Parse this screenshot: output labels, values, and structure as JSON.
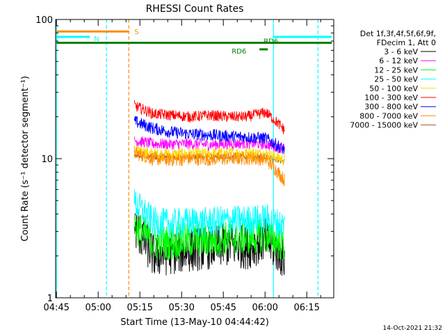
{
  "chart_data": {
    "type": "line",
    "title": "RHESSI Count Rates",
    "xlabel": "Start Time (13-May-10 04:44:42)",
    "ylabel": "Count Rate (s⁻¹ detector segment⁻¹)",
    "yscale": "log",
    "ylim": [
      1,
      100
    ],
    "xlim": [
      "04:44:42",
      "06:24:42"
    ],
    "x_ticks": [
      "04:45",
      "05:00",
      "05:15",
      "05:30",
      "05:45",
      "06:00",
      "06:15"
    ],
    "y_ticks": [
      "1",
      "10",
      "100"
    ],
    "legend_header": [
      "Det 1f,3f,4f,5f,6f,9f,",
      "FDecim 1, Att 0"
    ],
    "timestamp": "14-Oct-2021 21:32",
    "series": [
      {
        "name": "3 - 6 keV",
        "color": "#000000",
        "start": "05:13",
        "end": "06:07",
        "level": [
          3.2,
          2.0,
          2.1,
          2.2,
          2.3,
          2.4,
          2.3,
          2.6,
          1.9
        ]
      },
      {
        "name": "6 - 12 keV",
        "color": "#ff00ff",
        "start": "05:13",
        "end": "06:07",
        "level": [
          13.5,
          12.8,
          12.7,
          12.8,
          12.6,
          12.8,
          12.9,
          12.7,
          11.8
        ]
      },
      {
        "name": "12 - 25 keV",
        "color": "#00ff00",
        "start": "05:13",
        "end": "06:07",
        "level": [
          3.3,
          2.5,
          2.5,
          2.6,
          2.6,
          2.7,
          2.7,
          2.8,
          2.4
        ]
      },
      {
        "name": "25 - 50 keV",
        "color": "#00ffff",
        "start": "05:13",
        "end": "06:07",
        "level": [
          4.8,
          3.5,
          3.4,
          3.5,
          3.5,
          3.6,
          3.6,
          3.7,
          3.3
        ]
      },
      {
        "name": "50 - 100 keV",
        "color": "#ffd700",
        "start": "05:13",
        "end": "06:07",
        "level": [
          11.5,
          10.8,
          10.7,
          10.8,
          10.8,
          10.9,
          11.0,
          10.8,
          9.8
        ]
      },
      {
        "name": "100 - 300 keV",
        "color": "#ff0000",
        "start": "05:13",
        "end": "06:07",
        "level": [
          24.0,
          21.0,
          20.5,
          20.0,
          20.5,
          20.0,
          20.0,
          21.5,
          16.0
        ]
      },
      {
        "name": "300 - 800 keV",
        "color": "#0000ff",
        "start": "05:13",
        "end": "06:07",
        "level": [
          18.5,
          16.5,
          15.5,
          15.0,
          14.8,
          14.5,
          14.3,
          14.0,
          11.5
        ]
      },
      {
        "name": "800 - 7000 keV",
        "color": "#ff8c00",
        "start": "05:13",
        "end": "06:07",
        "level": [
          11.0,
          10.0,
          9.8,
          10.0,
          9.9,
          10.0,
          10.1,
          9.9,
          7.0
        ]
      },
      {
        "name": "7000 - 15000 keV",
        "color": "#a0522d",
        "start": "05:13",
        "end": "06:07",
        "level": [
          10.5,
          10.3,
          10.3,
          10.3,
          10.3,
          10.3,
          10.4,
          10.4,
          9.5
        ]
      }
    ],
    "annotations": [
      {
        "label": "S",
        "color": "#ff8c00",
        "start": "04:45",
        "end": "05:11",
        "y": 82
      },
      {
        "label": "N",
        "color": "#00ffff",
        "start": "04:45",
        "end": "04:57",
        "y": 75
      },
      {
        "label": "",
        "color": "#00ffff",
        "start": "06:03",
        "end": "06:24",
        "y": 75
      },
      {
        "label": "RD6",
        "color": "#008000",
        "start": "04:45",
        "end": "06:24",
        "y": 68
      },
      {
        "label": "RD6",
        "color": "#008000",
        "start": "05:58",
        "end": "06:01",
        "y": 61
      }
    ],
    "vertical_lines": [
      {
        "time": "04:45",
        "color": "#00ffff",
        "style": "solid"
      },
      {
        "time": "05:03",
        "color": "#00ffff",
        "style": "dashed"
      },
      {
        "time": "05:11",
        "color": "#ff8c00",
        "style": "dashed"
      },
      {
        "time": "06:03",
        "color": "#00ffff",
        "style": "solid"
      },
      {
        "time": "06:19",
        "color": "#00ffff",
        "style": "dashed"
      }
    ]
  }
}
